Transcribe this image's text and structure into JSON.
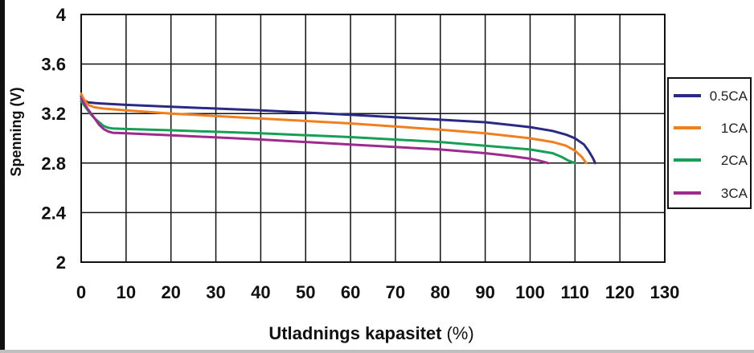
{
  "chart_data": {
    "type": "line",
    "xlabel": "Utladnings kapasitet",
    "xlabel_unit": "(%)",
    "ylabel": "Spenning (V)",
    "xlim": [
      0,
      130
    ],
    "ylim": [
      2,
      4
    ],
    "x_ticks": [
      "0",
      "10",
      "20",
      "30",
      "40",
      "50",
      "60",
      "70",
      "80",
      "90",
      "100",
      "110",
      "120",
      "130"
    ],
    "y_ticks": [
      "2",
      "2.4",
      "2.8",
      "3.2",
      "3.6",
      "4"
    ],
    "grid": true,
    "legend_position": "right",
    "series": [
      {
        "name": "0.5CA",
        "color": "#2a2a85",
        "x": [
          0,
          0.5,
          1.5,
          3,
          5,
          10,
          20,
          40,
          60,
          80,
          90,
          100,
          105,
          108,
          110,
          112,
          113,
          114,
          114.5
        ],
        "y": [
          3.34,
          3.31,
          3.29,
          3.285,
          3.28,
          3.27,
          3.255,
          3.225,
          3.19,
          3.15,
          3.13,
          3.09,
          3.06,
          3.03,
          3.0,
          2.95,
          2.9,
          2.84,
          2.8
        ]
      },
      {
        "name": "1CA",
        "color": "#f07f1f",
        "x": [
          0,
          0.5,
          1.5,
          3,
          5,
          10,
          20,
          40,
          60,
          80,
          90,
          100,
          105,
          108,
          110,
          111.5,
          112.5
        ],
        "y": [
          3.36,
          3.32,
          3.27,
          3.25,
          3.24,
          3.225,
          3.2,
          3.16,
          3.12,
          3.07,
          3.04,
          3.0,
          2.97,
          2.94,
          2.9,
          2.85,
          2.8
        ]
      },
      {
        "name": "2CA",
        "color": "#17a055",
        "x": [
          0,
          1,
          2,
          3,
          4,
          5,
          6,
          7,
          10,
          20,
          40,
          60,
          80,
          90,
          100,
          105,
          107,
          108.5,
          110
        ],
        "y": [
          3.3,
          3.25,
          3.2,
          3.16,
          3.13,
          3.1,
          3.085,
          3.08,
          3.075,
          3.065,
          3.04,
          3.01,
          2.97,
          2.94,
          2.91,
          2.88,
          2.85,
          2.82,
          2.8
        ]
      },
      {
        "name": "3CA",
        "color": "#9c2b8e",
        "x": [
          0,
          1,
          2,
          3,
          4,
          5,
          6,
          7,
          10,
          20,
          40,
          60,
          80,
          90,
          95,
          100,
          102,
          104
        ],
        "y": [
          3.32,
          3.26,
          3.21,
          3.16,
          3.11,
          3.075,
          3.055,
          3.045,
          3.04,
          3.025,
          2.99,
          2.95,
          2.91,
          2.88,
          2.86,
          2.835,
          2.82,
          2.8
        ]
      }
    ]
  }
}
